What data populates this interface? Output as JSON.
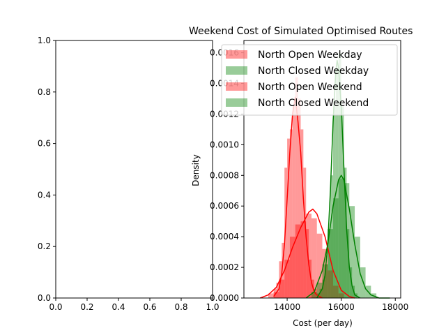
{
  "chart_data": [
    {
      "type": "line",
      "title": "",
      "xlabel": "",
      "ylabel": "",
      "xlim": [
        0.0,
        1.0
      ],
      "ylim": [
        0.0,
        1.0
      ],
      "xticks": [
        "0.0",
        "0.2",
        "0.4",
        "0.6",
        "0.8",
        "1.0"
      ],
      "yticks": [
        "0.0",
        "0.2",
        "0.4",
        "0.6",
        "0.8",
        "1.0"
      ],
      "series": []
    },
    {
      "type": "histogram",
      "title": "Weekend Cost of Simulated Optimised Routes",
      "xlabel": "Cost (per day)",
      "ylabel": "Density",
      "xlim": [
        12400,
        18200
      ],
      "ylim": [
        0,
        0.00168
      ],
      "xticks": [
        "14000",
        "16000",
        "18000"
      ],
      "yticks": [
        "0.0000",
        "0.0002",
        "0.0004",
        "0.0006",
        "0.0008",
        "0.0010",
        "0.0012",
        "0.0014",
        "0.0016"
      ],
      "legend_position": "top-right",
      "series": [
        {
          "name": "North Open Weekday",
          "color": "#ff0000",
          "hist": [
            {
              "x0": 13300,
              "x1": 13400,
              "v": 3e-05
            },
            {
              "x0": 13400,
              "x1": 13500,
              "v": 3e-05
            },
            {
              "x0": 13500,
              "x1": 13600,
              "v": 6e-05
            },
            {
              "x0": 13600,
              "x1": 13700,
              "v": 0.0001
            },
            {
              "x0": 13700,
              "x1": 13800,
              "v": 0.00024
            },
            {
              "x0": 13800,
              "x1": 13900,
              "v": 0.00036
            },
            {
              "x0": 13900,
              "x1": 14000,
              "v": 0.00085
            },
            {
              "x0": 14000,
              "x1": 14100,
              "v": 0.00104
            },
            {
              "x0": 14100,
              "x1": 14200,
              "v": 0.0011
            },
            {
              "x0": 14200,
              "x1": 14300,
              "v": 0.00125
            },
            {
              "x0": 14300,
              "x1": 14400,
              "v": 0.00144
            },
            {
              "x0": 14400,
              "x1": 14500,
              "v": 0.0013
            },
            {
              "x0": 14500,
              "x1": 14600,
              "v": 0.0011
            },
            {
              "x0": 14600,
              "x1": 14700,
              "v": 0.00085
            },
            {
              "x0": 14700,
              "x1": 14800,
              "v": 0.00045
            },
            {
              "x0": 14800,
              "x1": 14900,
              "v": 0.00025
            },
            {
              "x0": 14900,
              "x1": 15000,
              "v": 0.00012
            },
            {
              "x0": 15000,
              "x1": 15100,
              "v": 6e-05
            }
          ],
          "kde": {
            "x": [
              13500,
              13700,
              13800,
              13900,
              14000,
              14100,
              14200,
              14300,
              14400,
              14500,
              14600,
              14700,
              14800,
              14900,
              15000,
              15100,
              15300
            ],
            "y": [
              1e-05,
              6e-05,
              0.00016,
              0.00035,
              0.00065,
              0.00095,
              0.0012,
              0.00131,
              0.00115,
              0.00095,
              0.00065,
              0.0004,
              0.00022,
              0.0001,
              4e-05,
              2e-05,
              0.0
            ]
          }
        },
        {
          "name": "North Closed Weekday",
          "color": "#008000",
          "hist": [
            {
              "x0": 15100,
              "x1": 15200,
              "v": 3e-05
            },
            {
              "x0": 15200,
              "x1": 15300,
              "v": 6e-05
            },
            {
              "x0": 15300,
              "x1": 15400,
              "v": 0.00012
            },
            {
              "x0": 15400,
              "x1": 15500,
              "v": 0.00022
            },
            {
              "x0": 15500,
              "x1": 15600,
              "v": 0.00045
            },
            {
              "x0": 15600,
              "x1": 15700,
              "v": 0.0008
            },
            {
              "x0": 15700,
              "x1": 15800,
              "v": 0.00125
            },
            {
              "x0": 15800,
              "x1": 15900,
              "v": 0.0015
            },
            {
              "x0": 15900,
              "x1": 16000,
              "v": 0.0016
            },
            {
              "x0": 16000,
              "x1": 16100,
              "v": 0.00125
            },
            {
              "x0": 16100,
              "x1": 16200,
              "v": 0.00085
            },
            {
              "x0": 16200,
              "x1": 16300,
              "v": 0.00045
            },
            {
              "x0": 16300,
              "x1": 16400,
              "v": 0.0002
            },
            {
              "x0": 16400,
              "x1": 16500,
              "v": 8e-05
            },
            {
              "x0": 16500,
              "x1": 16600,
              "v": 3e-05
            }
          ],
          "kde": {
            "x": [
              15100,
              15300,
              15400,
              15500,
              15600,
              15700,
              15800,
              15850,
              15900,
              16000,
              16100,
              16200,
              16300,
              16400,
              16500,
              16700
            ],
            "y": [
              0.0,
              6e-05,
              0.00015,
              0.00035,
              0.0007,
              0.00115,
              0.00148,
              0.00155,
              0.0015,
              0.00125,
              0.00085,
              0.00045,
              0.0002,
              8e-05,
              2e-05,
              0.0
            ]
          }
        },
        {
          "name": "North Open Weekend",
          "color": "#ff0000",
          "hist": [
            {
              "x0": 13500,
              "x1": 13700,
              "v": 4e-05
            },
            {
              "x0": 13700,
              "x1": 13900,
              "v": 0.00012
            },
            {
              "x0": 13900,
              "x1": 14100,
              "v": 0.00025
            },
            {
              "x0": 14100,
              "x1": 14300,
              "v": 0.0004
            },
            {
              "x0": 14300,
              "x1": 14500,
              "v": 0.00048
            },
            {
              "x0": 14500,
              "x1": 14700,
              "v": 0.0005
            },
            {
              "x0": 14700,
              "x1": 14900,
              "v": 0.00055
            },
            {
              "x0": 14900,
              "x1": 15100,
              "v": 0.00052
            },
            {
              "x0": 15100,
              "x1": 15300,
              "v": 0.00042
            },
            {
              "x0": 15300,
              "x1": 15500,
              "v": 0.00032
            },
            {
              "x0": 15500,
              "x1": 15700,
              "v": 0.00018
            },
            {
              "x0": 15700,
              "x1": 15900,
              "v": 8e-05
            },
            {
              "x0": 15900,
              "x1": 16100,
              "v": 3e-05
            }
          ],
          "kde": {
            "x": [
              13000,
              13300,
              13600,
              13900,
              14200,
              14500,
              14800,
              14950,
              15100,
              15400,
              15700,
              16000,
              16300,
              16500
            ],
            "y": [
              0.0,
              2e-05,
              7e-05,
              0.00018,
              0.00033,
              0.00046,
              0.00056,
              0.00058,
              0.00055,
              0.0004,
              0.00018,
              5e-05,
              1e-05,
              0.0
            ]
          }
        },
        {
          "name": "North Closed Weekend",
          "color": "#008000",
          "hist": [
            {
              "x0": 14900,
              "x1": 15100,
              "v": 4e-05
            },
            {
              "x0": 15100,
              "x1": 15300,
              "v": 0.0001
            },
            {
              "x0": 15300,
              "x1": 15500,
              "v": 0.00022
            },
            {
              "x0": 15500,
              "x1": 15700,
              "v": 0.00045
            },
            {
              "x0": 15700,
              "x1": 15900,
              "v": 0.00065
            },
            {
              "x0": 15900,
              "x1": 16100,
              "v": 0.00078
            },
            {
              "x0": 16100,
              "x1": 16300,
              "v": 0.00075
            },
            {
              "x0": 16300,
              "x1": 16500,
              "v": 0.0006
            },
            {
              "x0": 16500,
              "x1": 16700,
              "v": 0.0004
            },
            {
              "x0": 16700,
              "x1": 16900,
              "v": 0.0002
            },
            {
              "x0": 16900,
              "x1": 17100,
              "v": 8e-05
            },
            {
              "x0": 17100,
              "x1": 17300,
              "v": 3e-05
            }
          ],
          "kde": {
            "x": [
              14700,
              15000,
              15300,
              15500,
              15700,
              15900,
              16000,
              16100,
              16300,
              16500,
              16700,
              16900,
              17100,
              17400,
              17800
            ],
            "y": [
              0.0,
              4e-05,
              0.00018,
              0.00035,
              0.0006,
              0.00077,
              0.0008,
              0.00077,
              0.00058,
              0.00035,
              0.00016,
              6e-05,
              2e-05,
              0.0,
              0.0
            ]
          }
        }
      ]
    }
  ]
}
